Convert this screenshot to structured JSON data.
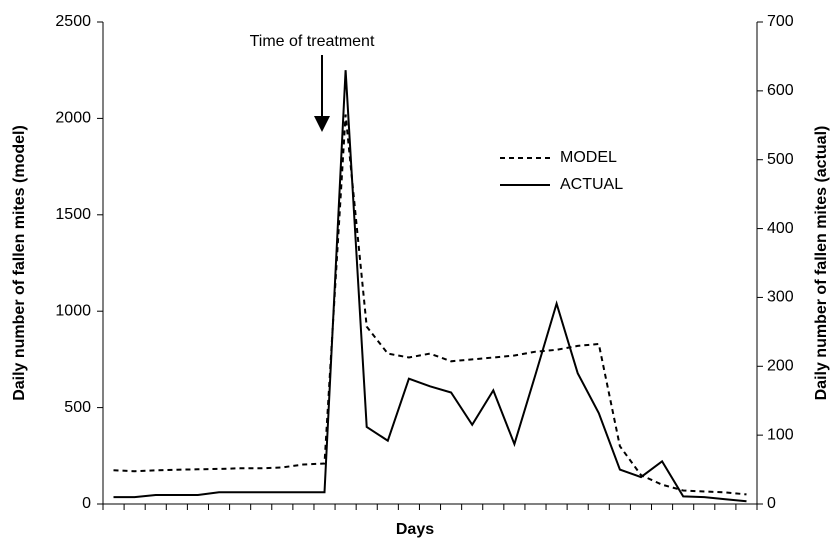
{
  "chart_data": {
    "type": "line",
    "annotation": "Time of treatment",
    "xlabel": "Days",
    "ylabel": "Daily number of fallen mites (model)",
    "y2label": "Daily number of fallen mites (actual)",
    "categories": [
      null,
      null,
      null,
      null,
      null,
      null,
      null,
      null,
      null,
      null,
      null,
      null,
      null,
      null,
      null,
      null,
      null,
      null,
      null,
      null,
      null,
      null,
      null,
      null,
      null,
      null,
      null,
      null,
      null,
      null,
      null
    ],
    "series": [
      {
        "name": "MODEL",
        "color": "#000000",
        "dash": "dashed",
        "values": [
          175,
          170,
          175,
          178,
          180,
          182,
          185,
          185,
          190,
          205,
          210,
          2020,
          920,
          780,
          760,
          780,
          740,
          750,
          760,
          770,
          790,
          800,
          820,
          830,
          300,
          150,
          100,
          70,
          65,
          60,
          50
        ]
      },
      {
        "name": "ACTUAL",
        "color": "#000000",
        "dash": "solid",
        "axis": "y2",
        "values": [
          10,
          10,
          13,
          13,
          13,
          17,
          17,
          17,
          17,
          17,
          17,
          630,
          112,
          92,
          182,
          171,
          162,
          115,
          165,
          87,
          188,
          291,
          190,
          132,
          50,
          39,
          62,
          11,
          10,
          7,
          4
        ]
      }
    ],
    "ylim": [
      0,
      2500
    ],
    "yticks": [
      0,
      500,
      1000,
      1500,
      2000,
      2500
    ],
    "y2lim": [
      0,
      700
    ],
    "y2ticks": [
      0,
      100,
      200,
      300,
      400,
      500,
      600,
      700
    ]
  }
}
